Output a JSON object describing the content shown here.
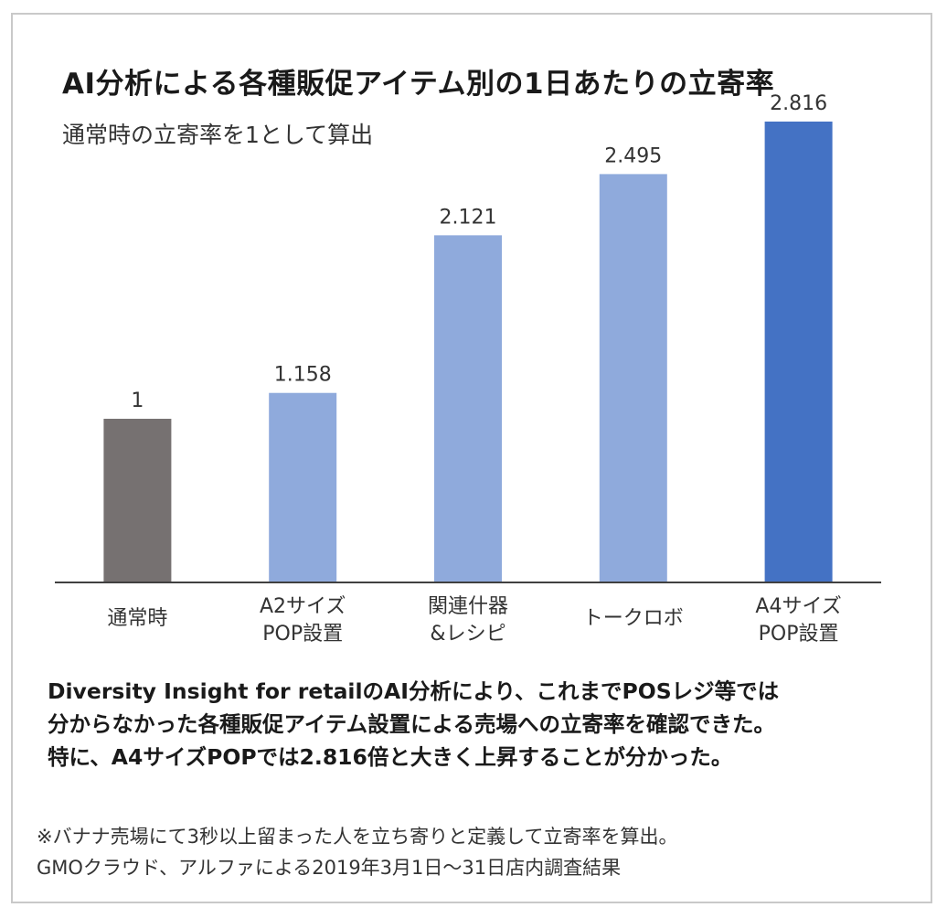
{
  "title": "AI分析による各種販促アイテム別の1日あたりの立寄率",
  "subtitle": "通常時の立寄率を1として算出",
  "colors": {
    "baseline": "#767171",
    "light_blue": "#8faadc",
    "dark_blue": "#4472c4",
    "axis": "#404040"
  },
  "chart_data": {
    "type": "bar",
    "categories": [
      [
        "通常時"
      ],
      [
        "A2サイズ",
        "POP設置"
      ],
      [
        "関連什器",
        "&レシピ"
      ],
      [
        "トークロボ"
      ],
      [
        "A4サイズ",
        "POP設置"
      ]
    ],
    "values": [
      1,
      1.158,
      2.121,
      2.495,
      2.816
    ],
    "value_labels": [
      "1",
      "1.158",
      "2.121",
      "2.495",
      "2.816"
    ],
    "bar_colors": [
      "#767171",
      "#8faadc",
      "#8faadc",
      "#8faadc",
      "#4472c4"
    ],
    "ylim": [
      0,
      3.0
    ],
    "grid": false,
    "legend": "none"
  },
  "summary_lines": [
    "Diversity Insight for retailのAI分析により、これまでPOSレジ等では",
    "分からなかった各種販促アイテム設置による売場への立寄率を確認できた。",
    "特に、A4サイズPOPでは2.816倍と大きく上昇することが分かった。"
  ],
  "notes": [
    "※バナナ売場にて3秒以上留まった人を立ち寄りと定義して立寄率を算出。",
    "GMOクラウド、アルファによる2019年3月1日～31日店内調査結果"
  ]
}
